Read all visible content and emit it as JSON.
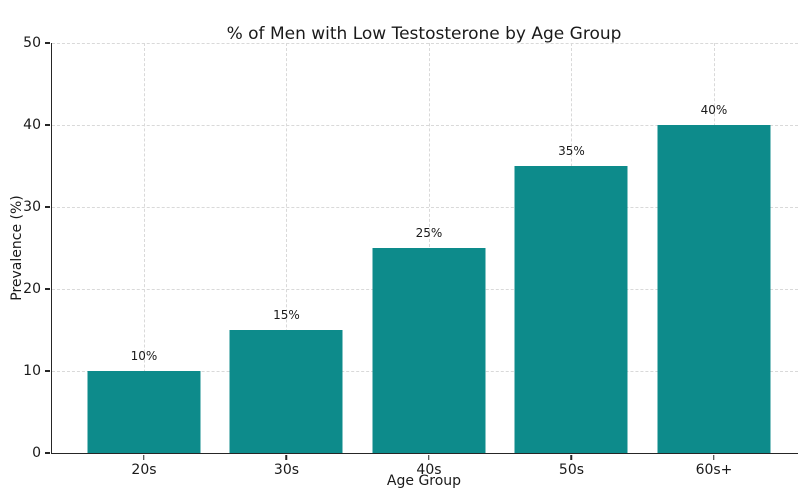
{
  "chart_data": {
    "type": "bar",
    "title": "% of Men with Low Testosterone by Age Group",
    "xlabel": "Age Group",
    "ylabel": "Prevalence (%)",
    "categories": [
      "20s",
      "30s",
      "40s",
      "50s",
      "60s+"
    ],
    "values": [
      10,
      15,
      25,
      35,
      40
    ],
    "value_labels": [
      "10%",
      "15%",
      "25%",
      "35%",
      "40%"
    ],
    "ylim": [
      0,
      50
    ],
    "yticks": [
      0,
      10,
      20,
      30,
      40,
      50
    ],
    "ytick_labels": [
      "0",
      "10",
      "20",
      "30",
      "40",
      "50"
    ],
    "grid": true,
    "legend": false,
    "colors": {
      "bar": "#0d8b8b",
      "grid": "#d9d9d9",
      "text": "#1a1a1a",
      "spine": "#262626",
      "background": "#ffffff"
    }
  }
}
